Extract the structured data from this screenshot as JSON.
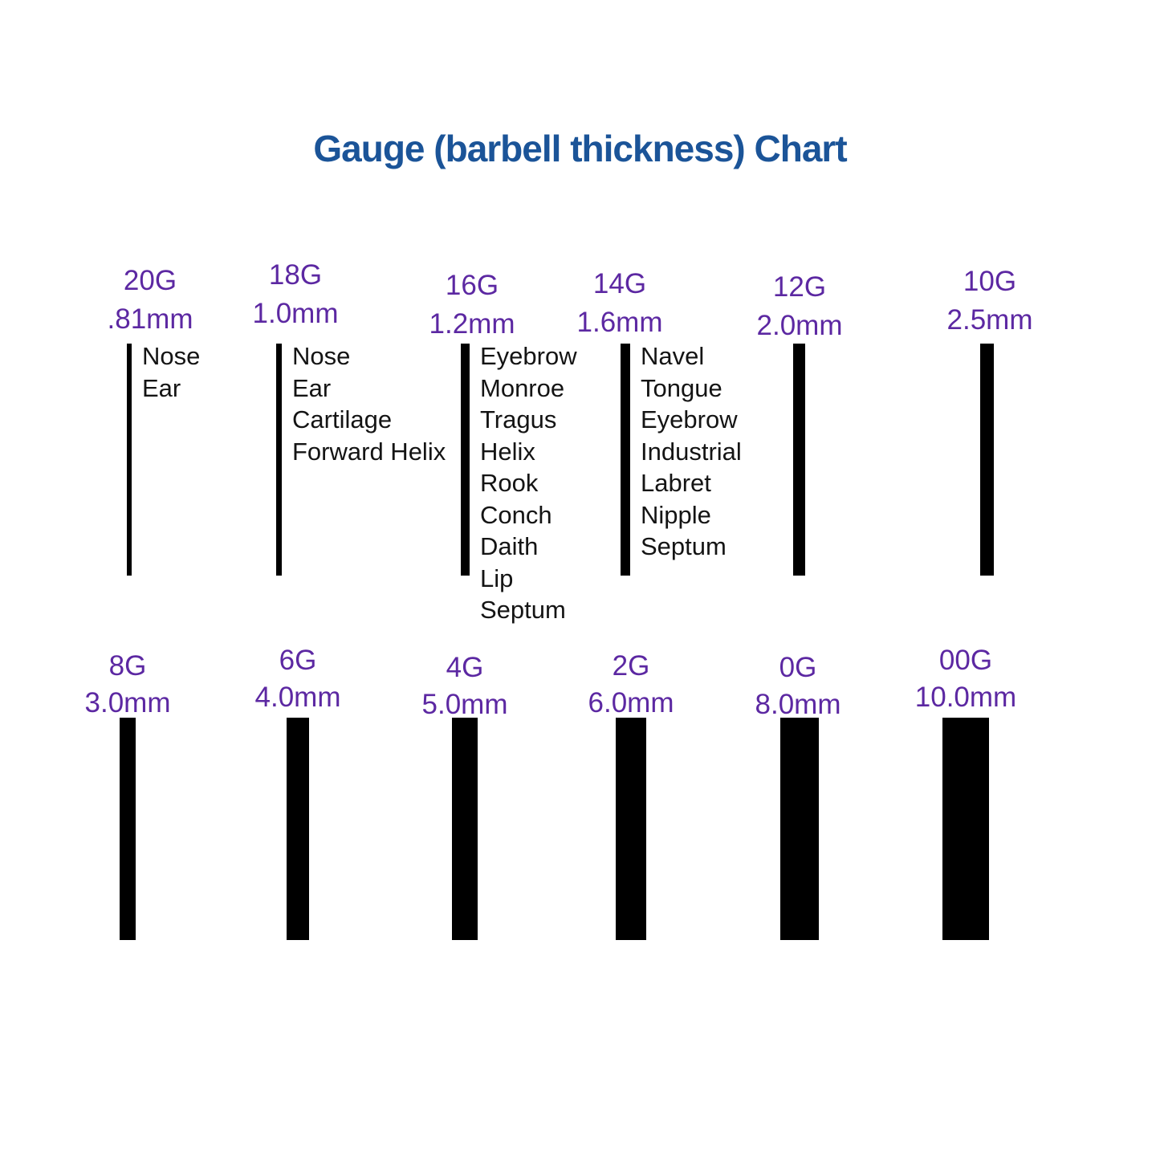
{
  "title": "Gauge (barbell thickness) Chart",
  "colors": {
    "title": "#1b5498",
    "gauge_label": "#5c28a2",
    "bar": "#000000",
    "piercing_text": "#141414",
    "background": "#ffffff"
  },
  "chart_data": {
    "type": "bar",
    "title": "Gauge (barbell thickness) Chart",
    "encoding": "bar width encodes barbell thickness in mm; bar height is decorative",
    "grid": false,
    "legend_position": "none",
    "rows": [
      {
        "items": [
          {
            "gauge": "20G",
            "size_label": ".81mm",
            "size_mm": 0.81,
            "piercings": [
              "Nose",
              "Ear"
            ]
          },
          {
            "gauge": "18G",
            "size_label": "1.0mm",
            "size_mm": 1.0,
            "piercings": [
              "Nose",
              "Ear",
              "Cartilage",
              "Forward Helix"
            ]
          },
          {
            "gauge": "16G",
            "size_label": "1.2mm",
            "size_mm": 1.2,
            "piercings": [
              "Eyebrow",
              "Monroe",
              "Tragus",
              "Helix",
              "Rook",
              "Conch",
              "Daith",
              "Lip",
              "Septum"
            ]
          },
          {
            "gauge": "14G",
            "size_label": "1.6mm",
            "size_mm": 1.6,
            "piercings": [
              "Navel",
              "Tongue",
              "Eyebrow",
              "Industrial",
              "Labret",
              "Nipple",
              "Septum"
            ]
          },
          {
            "gauge": "12G",
            "size_label": "2.0mm",
            "size_mm": 2.0,
            "piercings": []
          },
          {
            "gauge": "10G",
            "size_label": "2.5mm",
            "size_mm": 2.5,
            "piercings": []
          }
        ]
      },
      {
        "items": [
          {
            "gauge": "8G",
            "size_label": "3.0mm",
            "size_mm": 3.0,
            "piercings": []
          },
          {
            "gauge": "6G",
            "size_label": "4.0mm",
            "size_mm": 4.0,
            "piercings": []
          },
          {
            "gauge": "4G",
            "size_label": "5.0mm",
            "size_mm": 5.0,
            "piercings": []
          },
          {
            "gauge": "2G",
            "size_label": "6.0mm",
            "size_mm": 6.0,
            "piercings": []
          },
          {
            "gauge": "0G",
            "size_label": "8.0mm",
            "size_mm": 8.0,
            "piercings": []
          },
          {
            "gauge": "00G",
            "size_label": "10.0mm",
            "size_mm": 10.0,
            "piercings": []
          }
        ]
      }
    ]
  }
}
